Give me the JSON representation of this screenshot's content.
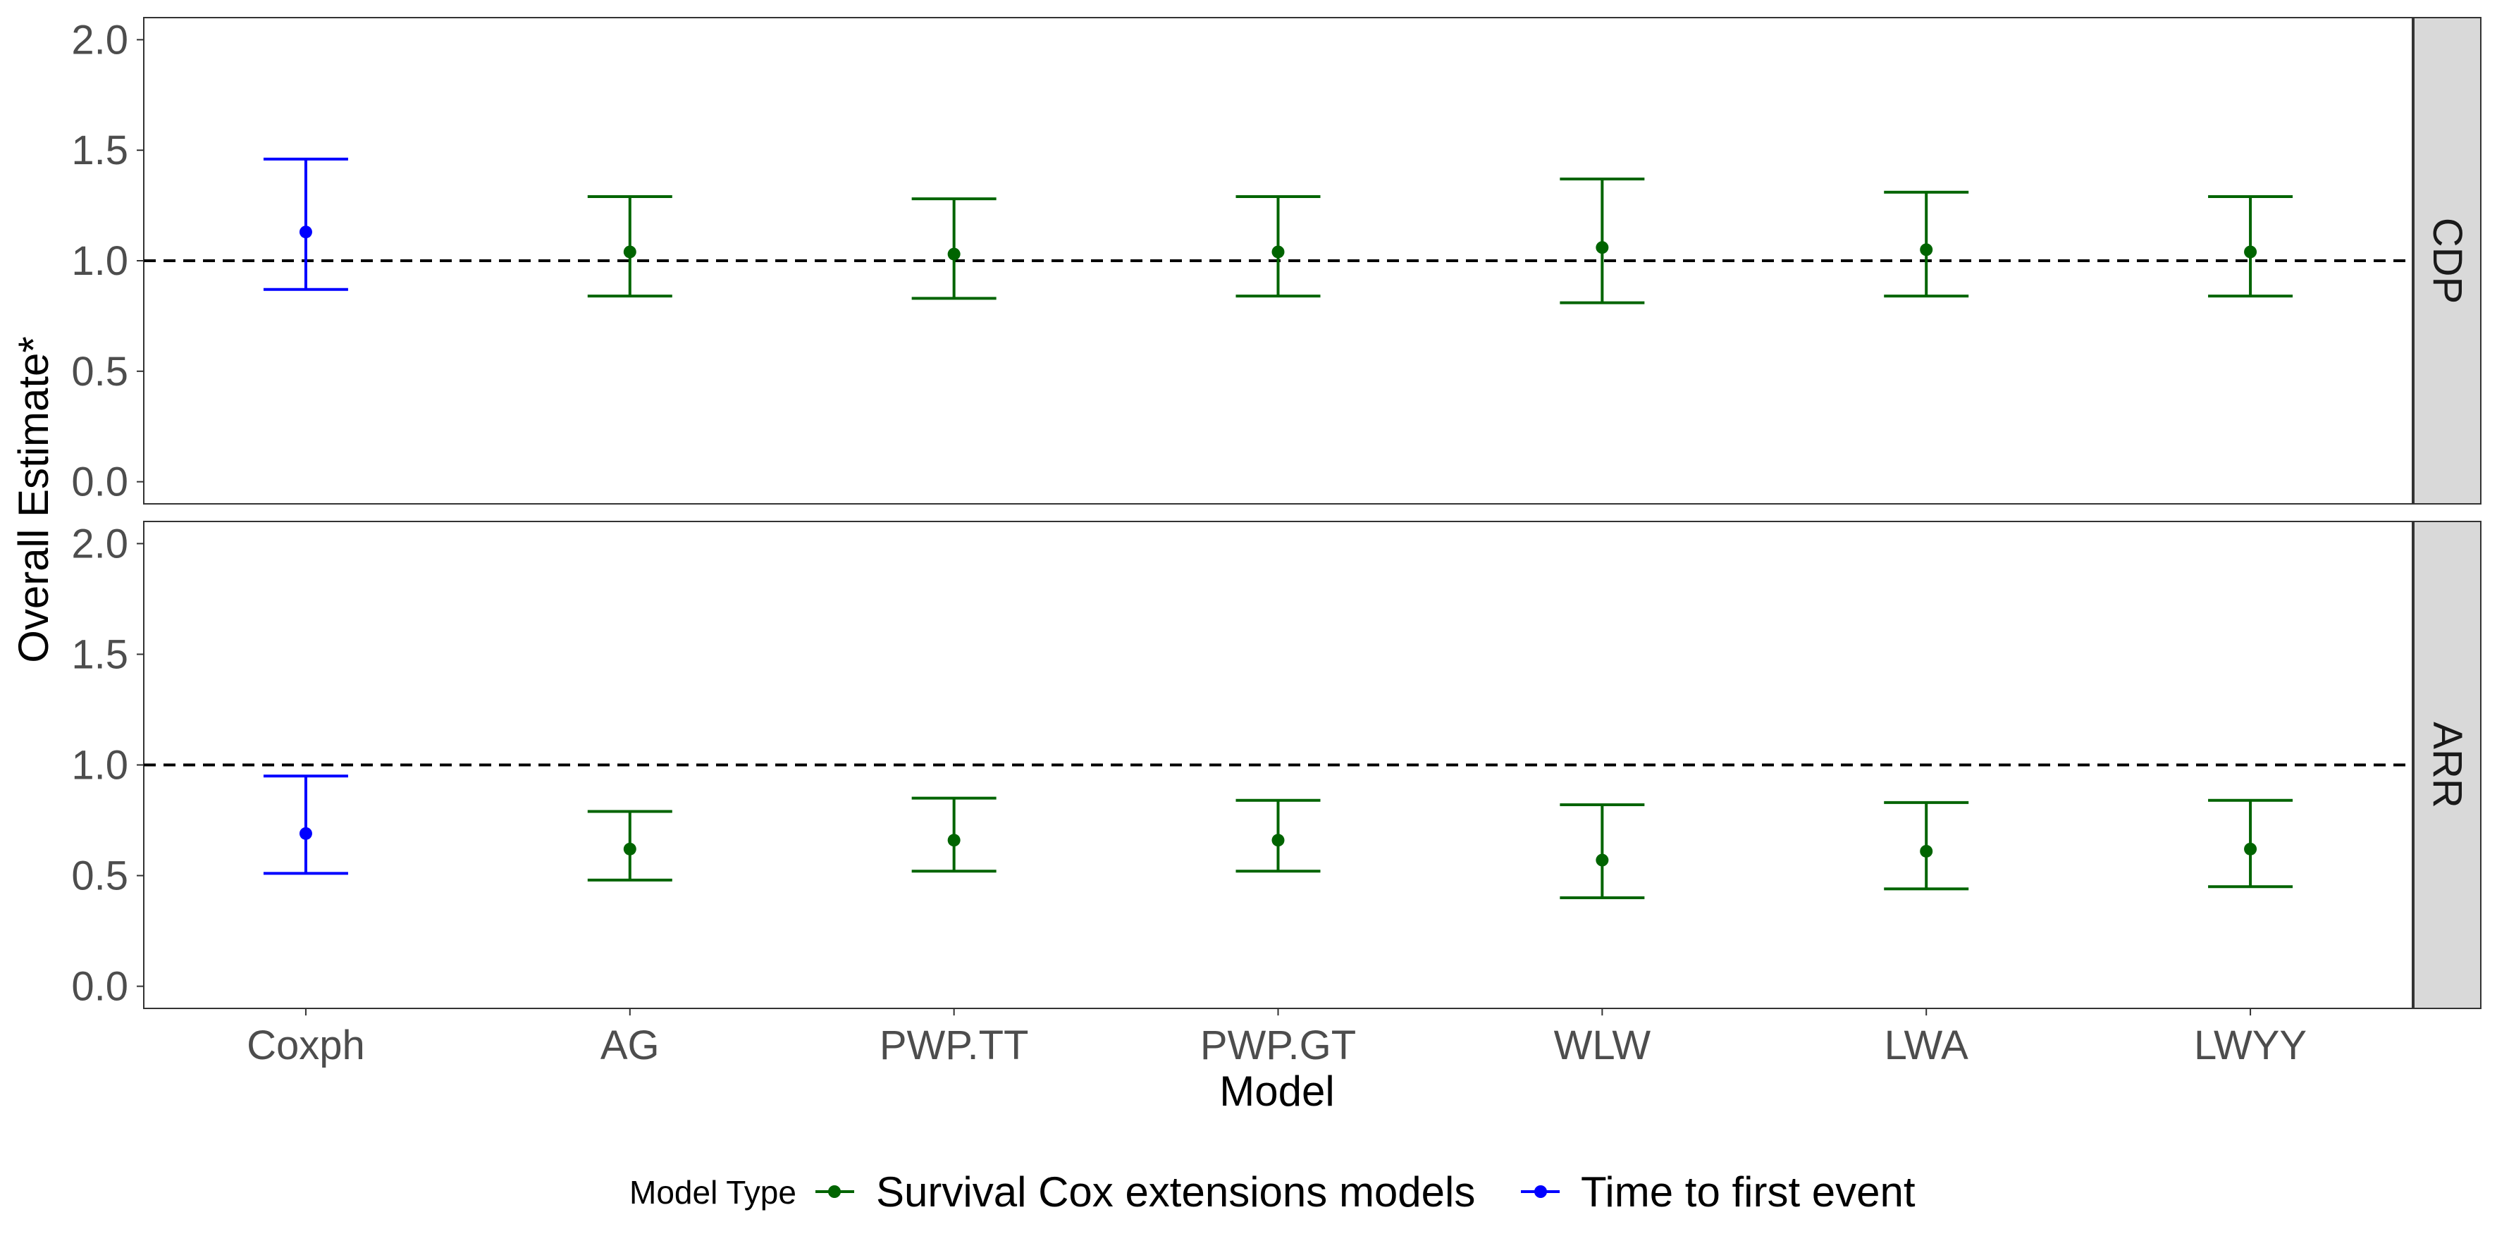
{
  "chart_data": {
    "type": "errorbar",
    "xlabel": "Model",
    "ylabel": "Overall Estimate*",
    "categories": [
      "Coxph",
      "AG",
      "PWP.TT",
      "PWP.GT",
      "WLW",
      "LWA",
      "LWYY"
    ],
    "ylim": [
      -0.1,
      2.1
    ],
    "yticks": [
      "0.0",
      "0.5",
      "1.0",
      "1.5",
      "2.0"
    ],
    "reference_line": 1.0,
    "grid": false,
    "colors": {
      "Survival Cox extensions models": "#006400",
      "Time to first event": "#0000ff"
    },
    "facets": [
      {
        "label": "CDP",
        "points": [
          {
            "model": "Coxph",
            "type": "Time to first event",
            "estimate": 1.13,
            "lower": 0.87,
            "upper": 1.46
          },
          {
            "model": "AG",
            "type": "Survival Cox extensions models",
            "estimate": 1.04,
            "lower": 0.84,
            "upper": 1.29
          },
          {
            "model": "PWP.TT",
            "type": "Survival Cox extensions models",
            "estimate": 1.03,
            "lower": 0.83,
            "upper": 1.28
          },
          {
            "model": "PWP.GT",
            "type": "Survival Cox extensions models",
            "estimate": 1.04,
            "lower": 0.84,
            "upper": 1.29
          },
          {
            "model": "WLW",
            "type": "Survival Cox extensions models",
            "estimate": 1.06,
            "lower": 0.81,
            "upper": 1.37
          },
          {
            "model": "LWA",
            "type": "Survival Cox extensions models",
            "estimate": 1.05,
            "lower": 0.84,
            "upper": 1.31
          },
          {
            "model": "LWYY",
            "type": "Survival Cox extensions models",
            "estimate": 1.04,
            "lower": 0.84,
            "upper": 1.29
          }
        ]
      },
      {
        "label": "ARR",
        "points": [
          {
            "model": "Coxph",
            "type": "Time to first event",
            "estimate": 0.69,
            "lower": 0.51,
            "upper": 0.95
          },
          {
            "model": "AG",
            "type": "Survival Cox extensions models",
            "estimate": 0.62,
            "lower": 0.48,
            "upper": 0.79
          },
          {
            "model": "PWP.TT",
            "type": "Survival Cox extensions models",
            "estimate": 0.66,
            "lower": 0.52,
            "upper": 0.85
          },
          {
            "model": "PWP.GT",
            "type": "Survival Cox extensions models",
            "estimate": 0.66,
            "lower": 0.52,
            "upper": 0.84
          },
          {
            "model": "WLW",
            "type": "Survival Cox extensions models",
            "estimate": 0.57,
            "lower": 0.4,
            "upper": 0.82
          },
          {
            "model": "LWA",
            "type": "Survival Cox extensions models",
            "estimate": 0.61,
            "lower": 0.44,
            "upper": 0.83
          },
          {
            "model": "LWYY",
            "type": "Survival Cox extensions models",
            "estimate": 0.62,
            "lower": 0.45,
            "upper": 0.84
          }
        ]
      }
    ],
    "legend": {
      "title": "Model Type",
      "position": "bottom",
      "entries": [
        "Survival Cox extensions models",
        "Time to first event"
      ]
    }
  }
}
